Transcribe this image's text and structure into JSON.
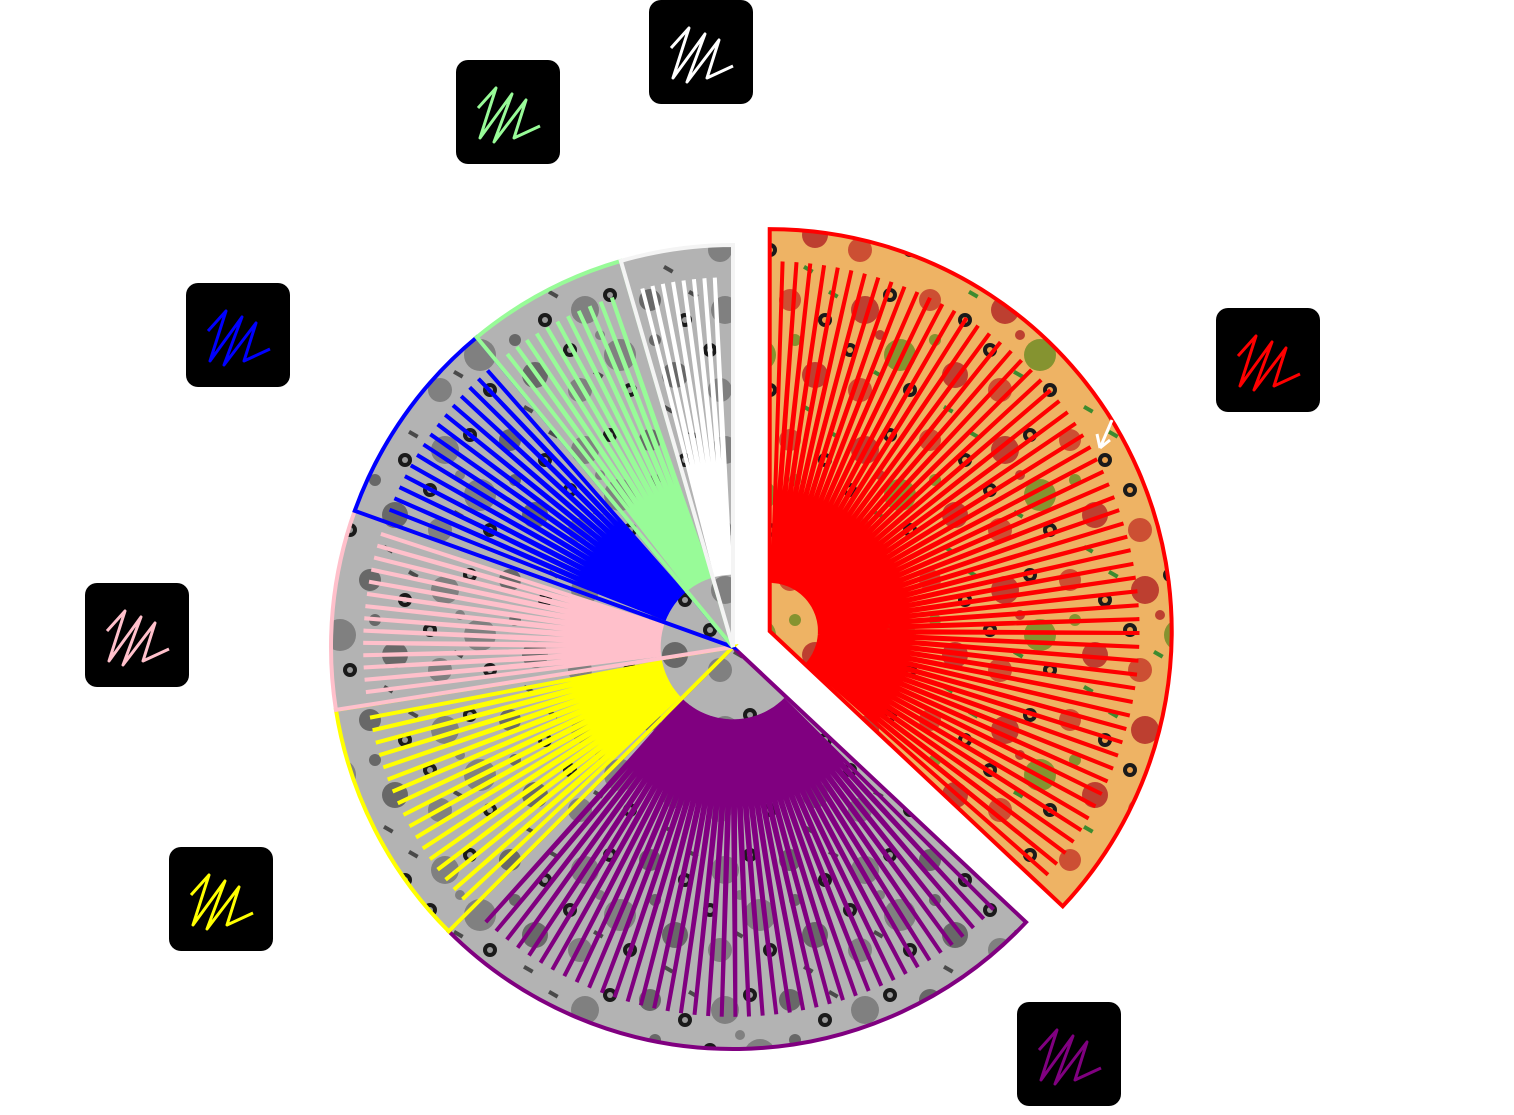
{
  "chart_data": {
    "type": "pie",
    "title": "",
    "start_angle_deg": 0,
    "direction": "clockwise",
    "legend_position": "around-pie",
    "slices": [
      {
        "color": "#ff0000",
        "value": 37.0,
        "exploded": true,
        "colored_photo": true
      },
      {
        "color": "#800080",
        "value": 25.5,
        "exploded": false,
        "colored_photo": false
      },
      {
        "color": "#ffff00",
        "value": 10.0,
        "exploded": false,
        "colored_photo": false
      },
      {
        "color": "#ffc0cb",
        "value": 8.0,
        "exploded": false,
        "colored_photo": false
      },
      {
        "color": "#0000ff",
        "value": 8.5,
        "exploded": false,
        "colored_photo": false
      },
      {
        "color": "#98fb98",
        "value": 6.5,
        "exploded": false,
        "colored_photo": false
      },
      {
        "color": "#ffffff",
        "value": 4.5,
        "exploded": false,
        "colored_photo": false
      }
    ],
    "legend_icon": "scribble-icon",
    "legend_background": "#000000"
  }
}
